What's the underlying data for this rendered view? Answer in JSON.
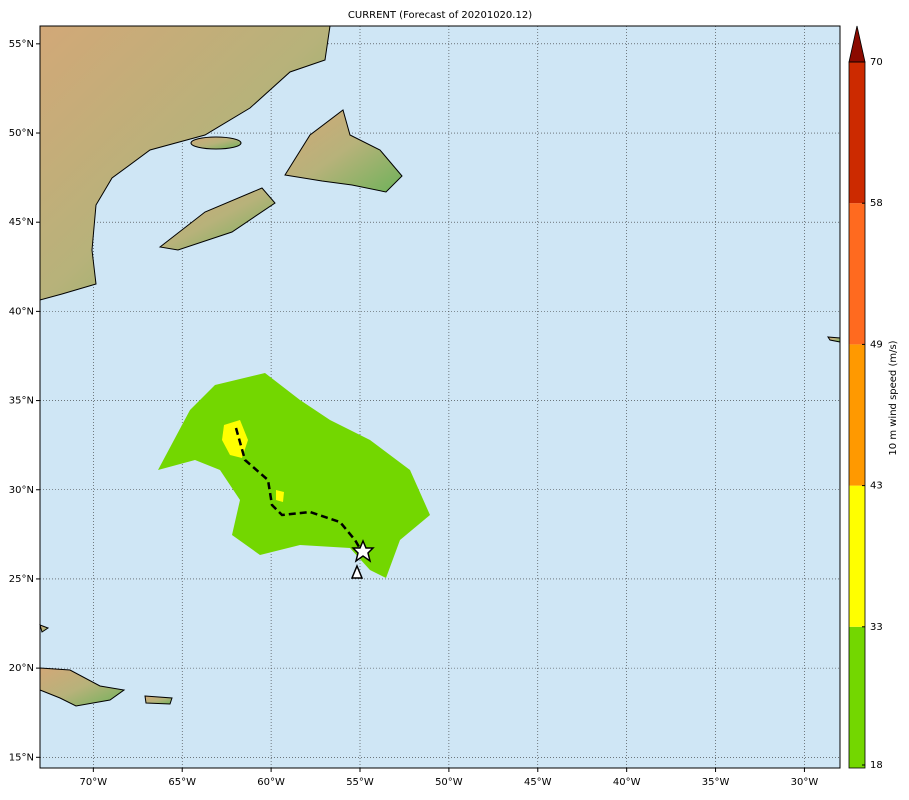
{
  "chart_data": {
    "type": "map",
    "title": "CURRENT (Forecast of 20201020.12)",
    "xlim": [
      -73,
      -28
    ],
    "ylim": [
      14.4,
      56
    ],
    "xticks": [
      {
        "value": -70,
        "label": "70°W"
      },
      {
        "value": -65,
        "label": "65°W"
      },
      {
        "value": -60,
        "label": "60°W"
      },
      {
        "value": -55,
        "label": "55°W"
      },
      {
        "value": -50,
        "label": "50°W"
      },
      {
        "value": -45,
        "label": "45°W"
      },
      {
        "value": -40,
        "label": "40°W"
      },
      {
        "value": -35,
        "label": "35°W"
      },
      {
        "value": -30,
        "label": "30°W"
      }
    ],
    "yticks": [
      {
        "value": 15,
        "label": "15°N"
      },
      {
        "value": 20,
        "label": "20°N"
      },
      {
        "value": 25,
        "label": "25°N"
      },
      {
        "value": 30,
        "label": "30°N"
      },
      {
        "value": 35,
        "label": "35°N"
      },
      {
        "value": 40,
        "label": "40°N"
      },
      {
        "value": 45,
        "label": "45°N"
      },
      {
        "value": 50,
        "label": "50°N"
      },
      {
        "value": 55,
        "label": "55°N"
      }
    ],
    "grid": true,
    "colorbar": {
      "label": "10 m wind speed (m/s)",
      "ticks": [
        18,
        33,
        43,
        49,
        58,
        70
      ],
      "colors": [
        "#73d700",
        "#ffff00",
        "#ff9900",
        "#ff6a1f",
        "#cc2a00"
      ],
      "extend_color": "#8b0a00"
    }
  }
}
